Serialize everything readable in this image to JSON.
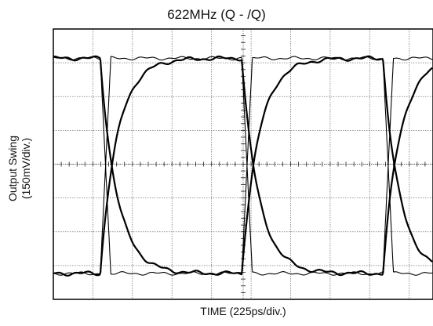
{
  "chart_data": {
    "type": "line",
    "title": "622MHz (Q - /Q)",
    "xlabel": "TIME (225ps/div.)",
    "ylabel_line1": "Output Swing",
    "ylabel_line2": "(150mV/div.)",
    "x_unit": "ps",
    "y_unit": "mV",
    "x_per_div": 225,
    "y_per_div": 150,
    "x_range_ps": [
      0,
      2025
    ],
    "y_range_mV": [
      -600,
      600
    ],
    "grid": true,
    "x_divisions": 9,
    "y_divisions": 8,
    "signal": {
      "name": "",
      "high_level_mV": 470,
      "low_level_mV": -485,
      "crossing_level_mV": 0,
      "crossing_times_ps": [
        297,
        1102,
        1905
      ],
      "bit_period_ps": 804,
      "eye_diagram": true
    }
  }
}
